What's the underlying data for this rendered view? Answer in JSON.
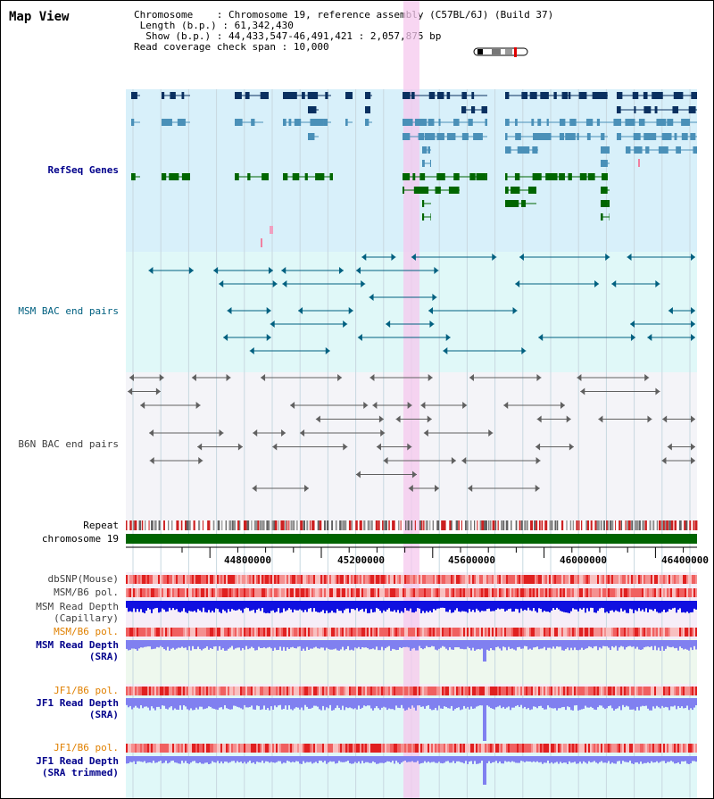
{
  "app": {
    "title": "Map View"
  },
  "info": {
    "chromosome_key": "Chromosome",
    "chromosome_val": "Chromosome 19, reference assembly (C57BL/6J) (Build 37)",
    "length_key": "Length (b.p.)",
    "length_val": "61,342,430",
    "show_key": "Show (b.p.)",
    "show_val": "44,433,547-46,491,421 : 2,057,875 bp",
    "read_key": "Read coverage check span",
    "read_val": "10,000"
  },
  "tracks": {
    "refseq": "RefSeq Genes",
    "msm_bac": "MSM BAC end pairs",
    "b6n_bac": "B6N BAC end pairs",
    "repeat": "Repeat",
    "chromosome": "chromosome 19",
    "dbsnp": "dbSNP(Mouse)",
    "msm_pol1": "MSM/B6 pol.",
    "msm_depth_cap_1": "MSM Read Depth",
    "msm_depth_cap_2": "(Capillary)",
    "msm_pol2": "MSM/B6 pol.",
    "msm_depth_sra_1": "MSM Read Depth",
    "msm_depth_sra_2": "(SRA)",
    "jf1_pol1": "JF1/B6 pol.",
    "jf1_depth_sra_1": "JF1 Read Depth",
    "jf1_depth_sra_2": "(SRA)",
    "jf1_pol2": "JF1/B6 pol.",
    "jf1_depth_trim_1": "JF1 Read Depth",
    "jf1_depth_trim_2": "(SRA trimmed)"
  },
  "axis_ticks": [
    "44800000",
    "45200000",
    "45600000",
    "46000000",
    "46400000"
  ],
  "colors": {
    "refseq_bg": "#d8f0fa",
    "msm_bg": "#e0f8f8",
    "b6n_bg": "#f4f4f8",
    "highlight": "#f6c8ee",
    "gene_dark": "#0a3060",
    "gene_mid": "#4a90b8",
    "gene_green": "#006600",
    "bac_teal": "#006080",
    "bac_gray": "#606060",
    "depth_dark": "#1010e0",
    "depth_light": "#8080f0",
    "pol_red": "#e84040",
    "chrom_green": "#006400"
  }
}
